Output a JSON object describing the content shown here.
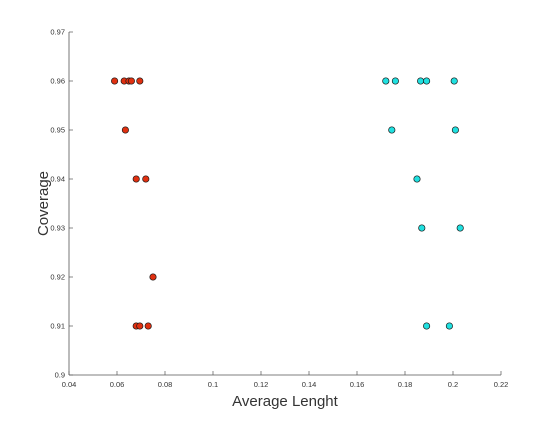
{
  "chart_data": {
    "type": "scatter",
    "title": "",
    "xlabel": "Average Lenght",
    "ylabel": "Coverage",
    "xlim": [
      0.04,
      0.22
    ],
    "ylim": [
      0.9,
      0.97
    ],
    "x_ticks": [
      0.04,
      0.06,
      0.08,
      0.1,
      0.12,
      0.14,
      0.16,
      0.18,
      0.2,
      0.22
    ],
    "x_tick_labels": [
      "0.04",
      "0.06",
      "0.08",
      "0.1",
      "0.12",
      "0.14",
      "0.16",
      "0.18",
      "0.2",
      "0.22"
    ],
    "y_ticks": [
      0.9,
      0.91,
      0.92,
      0.93,
      0.94,
      0.95,
      0.96,
      0.97
    ],
    "y_tick_labels": [
      "0.9",
      "0.91",
      "0.92",
      "0.93",
      "0.94",
      "0.95",
      "0.96",
      "0.97"
    ],
    "grid": false,
    "legend": "none",
    "series": [
      {
        "color": "#e03010",
        "points": [
          {
            "x": 0.059,
            "y": 0.96
          },
          {
            "x": 0.063,
            "y": 0.96
          },
          {
            "x": 0.065,
            "y": 0.96
          },
          {
            "x": 0.066,
            "y": 0.96
          },
          {
            "x": 0.0695,
            "y": 0.96
          },
          {
            "x": 0.0635,
            "y": 0.95
          },
          {
            "x": 0.068,
            "y": 0.94
          },
          {
            "x": 0.072,
            "y": 0.94
          },
          {
            "x": 0.075,
            "y": 0.92
          },
          {
            "x": 0.068,
            "y": 0.91
          },
          {
            "x": 0.0695,
            "y": 0.91
          },
          {
            "x": 0.073,
            "y": 0.91
          }
        ]
      },
      {
        "color": "#20e0e0",
        "points": [
          {
            "x": 0.172,
            "y": 0.96
          },
          {
            "x": 0.176,
            "y": 0.96
          },
          {
            "x": 0.1865,
            "y": 0.96
          },
          {
            "x": 0.189,
            "y": 0.96
          },
          {
            "x": 0.2005,
            "y": 0.96
          },
          {
            "x": 0.1745,
            "y": 0.95
          },
          {
            "x": 0.201,
            "y": 0.95
          },
          {
            "x": 0.185,
            "y": 0.94
          },
          {
            "x": 0.187,
            "y": 0.93
          },
          {
            "x": 0.203,
            "y": 0.93
          },
          {
            "x": 0.189,
            "y": 0.91
          },
          {
            "x": 0.1985,
            "y": 0.91
          }
        ]
      }
    ]
  }
}
